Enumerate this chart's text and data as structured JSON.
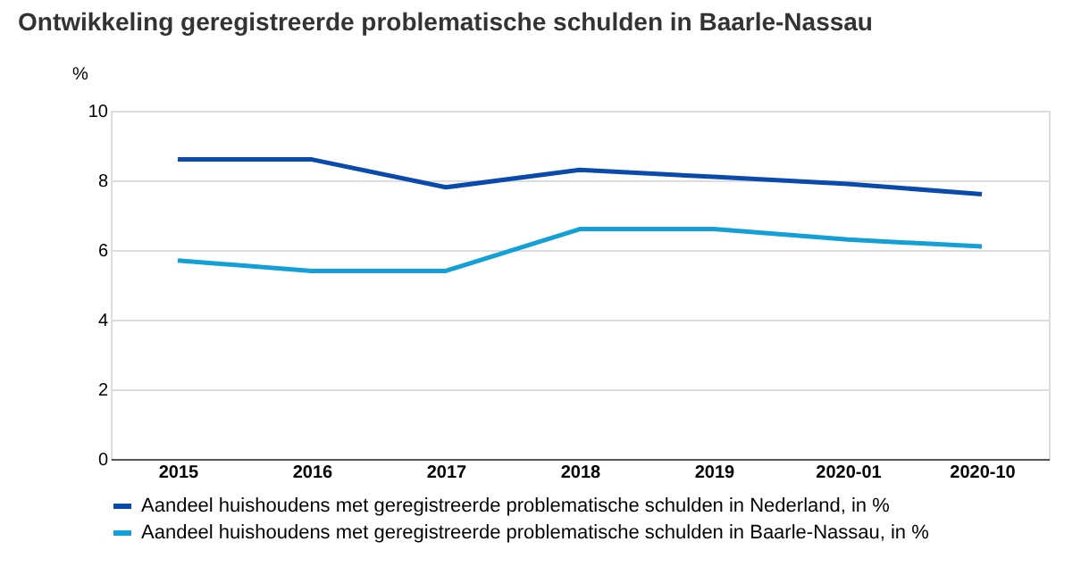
{
  "chart_data": {
    "type": "line",
    "title": "Ontwikkeling geregistreerde problematische schulden in Baarle-Nassau",
    "ylabel": "%",
    "categories": [
      "2015",
      "2016",
      "2017",
      "2018",
      "2019",
      "2020-01",
      "2020-10"
    ],
    "series": [
      {
        "name": "Aandeel huishoudens met geregistreerde problematische schulden in Nederland, in %",
        "color": "#0a4aad",
        "values": [
          8.6,
          8.6,
          7.8,
          8.3,
          8.1,
          7.9,
          7.6
        ]
      },
      {
        "name": "Aandeel huishoudens met geregistreerde problematische schulden in Baarle-Nassau, in %",
        "color": "#12a0d7",
        "values": [
          5.7,
          5.4,
          5.4,
          6.6,
          6.6,
          6.3,
          6.1
        ]
      }
    ],
    "ylim": [
      0,
      10
    ],
    "yticks": [
      0,
      2,
      4,
      6,
      8,
      10
    ],
    "grid": "y",
    "legend": "bottom left",
    "marker": "none",
    "line_style": "solid"
  }
}
